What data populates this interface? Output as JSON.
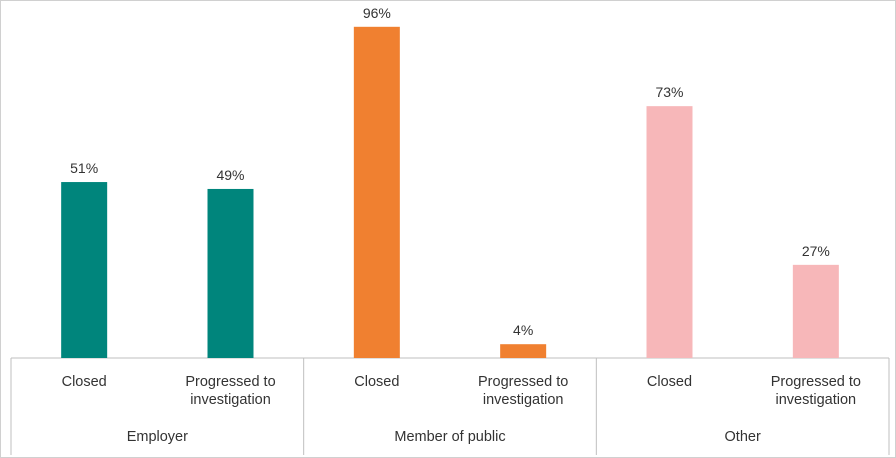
{
  "chart_data": {
    "type": "bar",
    "title": "",
    "xlabel": "",
    "ylabel": "",
    "ylim": [
      0,
      100
    ],
    "grid": false,
    "legend": "none",
    "value_suffix": "%",
    "groups": [
      {
        "name": "Employer",
        "color": "#00857C",
        "categories": [
          "Closed",
          "Progressed to investigation"
        ],
        "values": [
          51,
          49
        ]
      },
      {
        "name": "Member of public",
        "color": "#F08030",
        "categories": [
          "Closed",
          "Progressed to investigation"
        ],
        "values": [
          96,
          4
        ]
      },
      {
        "name": "Other",
        "color": "#F7B7B9",
        "categories": [
          "Closed",
          "Progressed to investigation"
        ],
        "values": [
          73,
          27
        ]
      }
    ]
  }
}
